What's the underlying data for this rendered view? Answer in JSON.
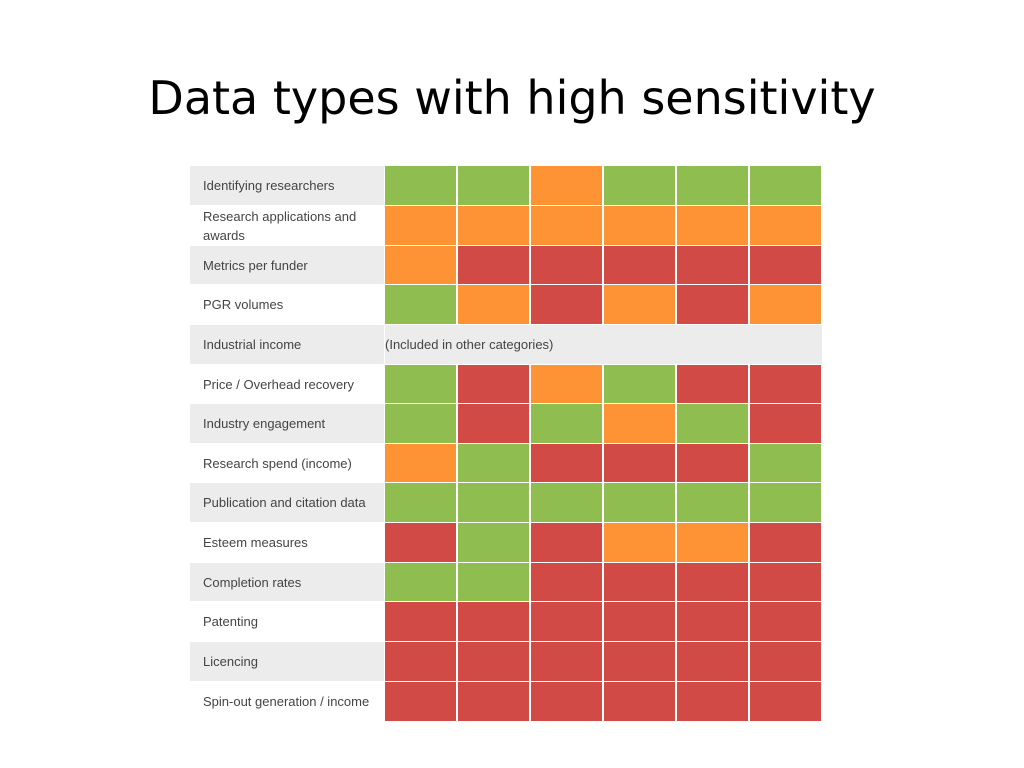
{
  "slide": {
    "title": "Data types with high sensitivity"
  },
  "colors": {
    "g": "#8fbd50",
    "o": "#fe9335",
    "r": "#d24a45",
    "row_shade": "#ececec"
  },
  "rows": [
    {
      "label": "Identifying researchers",
      "cells": [
        "g",
        "g",
        "o",
        "g",
        "g",
        "g"
      ]
    },
    {
      "label": "Research applications and awards",
      "cells": [
        "o",
        "o",
        "o",
        "o",
        "o",
        "o"
      ]
    },
    {
      "label": "Metrics per funder",
      "cells": [
        "o",
        "r",
        "r",
        "r",
        "r",
        "r"
      ]
    },
    {
      "label": "PGR volumes",
      "cells": [
        "g",
        "o",
        "r",
        "o",
        "r",
        "o"
      ]
    },
    {
      "label": "Industrial income",
      "note": "(Included in other categories)"
    },
    {
      "label": "Price / Overhead recovery",
      "cells": [
        "g",
        "r",
        "o",
        "g",
        "r",
        "r"
      ]
    },
    {
      "label": "Industry engagement",
      "cells": [
        "g",
        "r",
        "g",
        "o",
        "g",
        "r"
      ]
    },
    {
      "label": "Research spend (income)",
      "cells": [
        "o",
        "g",
        "r",
        "r",
        "r",
        "g"
      ]
    },
    {
      "label": "Publication and citation data",
      "cells": [
        "g",
        "g",
        "g",
        "g",
        "g",
        "g"
      ]
    },
    {
      "label": "Esteem measures",
      "cells": [
        "r",
        "g",
        "r",
        "o",
        "o",
        "r"
      ]
    },
    {
      "label": "Completion rates",
      "cells": [
        "g",
        "g",
        "r",
        "r",
        "r",
        "r"
      ]
    },
    {
      "label": "Patenting",
      "cells": [
        "r",
        "r",
        "r",
        "r",
        "r",
        "r"
      ]
    },
    {
      "label": "Licencing",
      "cells": [
        "r",
        "r",
        "r",
        "r",
        "r",
        "r"
      ]
    },
    {
      "label": "Spin-out generation / income",
      "cells": [
        "r",
        "r",
        "r",
        "r",
        "r",
        "r"
      ]
    }
  ]
}
